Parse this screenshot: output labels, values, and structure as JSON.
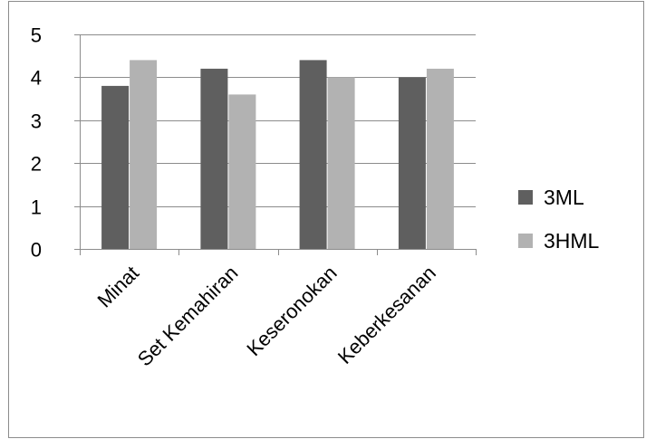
{
  "chart_data": {
    "type": "bar",
    "title": "",
    "xlabel": "",
    "ylabel": "",
    "categories": [
      "Minat",
      "Set Kemahiran",
      "Keseronokan",
      "Keberkesanan"
    ],
    "series": [
      {
        "name": "3ML",
        "values": [
          3.8,
          4.2,
          4.4,
          4.0
        ],
        "color": "#5f5f5f"
      },
      {
        "name": "3HML",
        "values": [
          4.4,
          3.6,
          4.0,
          4.2
        ],
        "color": "#b2b2b2"
      }
    ],
    "ylim": [
      0,
      5
    ],
    "yticks": [
      "0",
      "1",
      "2",
      "3",
      "4",
      "5"
    ],
    "grid": true,
    "legend_position": "right"
  }
}
